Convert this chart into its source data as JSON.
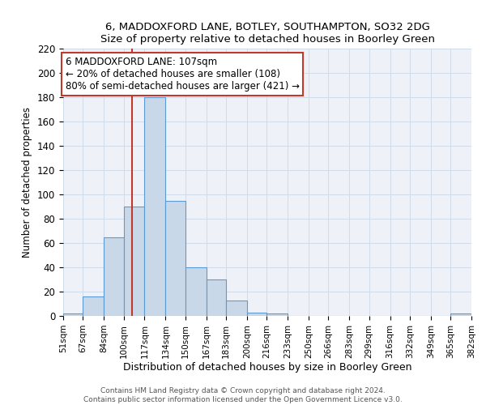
{
  "title1": "6, MADDOXFORD LANE, BOTLEY, SOUTHAMPTON, SO32 2DG",
  "title2": "Size of property relative to detached houses in Boorley Green",
  "xlabel": "Distribution of detached houses by size in Boorley Green",
  "ylabel": "Number of detached properties",
  "bin_edges": [
    51,
    67,
    84,
    100,
    117,
    134,
    150,
    167,
    183,
    200,
    216,
    233,
    250,
    266,
    283,
    299,
    316,
    332,
    349,
    365,
    382
  ],
  "bar_heights": [
    2,
    16,
    65,
    90,
    180,
    95,
    40,
    30,
    13,
    3,
    2,
    0,
    0,
    0,
    0,
    0,
    0,
    0,
    0,
    2
  ],
  "bar_color": "#c8d8e8",
  "bar_edge_color": "#5b9bd5",
  "vline_x": 107,
  "vline_color": "#c0392b",
  "annotation_line1": "6 MADDOXFORD LANE: 107sqm",
  "annotation_line2": "← 20% of detached houses are smaller (108)",
  "annotation_line3": "80% of semi-detached houses are larger (421) →",
  "annotation_box_color": "white",
  "annotation_box_edge": "#c0392b",
  "ylim": [
    0,
    220
  ],
  "yticks": [
    0,
    20,
    40,
    60,
    80,
    100,
    120,
    140,
    160,
    180,
    200,
    220
  ],
  "tick_labels": [
    "51sqm",
    "67sqm",
    "84sqm",
    "100sqm",
    "117sqm",
    "134sqm",
    "150sqm",
    "167sqm",
    "183sqm",
    "200sqm",
    "216sqm",
    "233sqm",
    "250sqm",
    "266sqm",
    "283sqm",
    "299sqm",
    "316sqm",
    "332sqm",
    "349sqm",
    "365sqm",
    "382sqm"
  ],
  "footer1": "Contains HM Land Registry data © Crown copyright and database right 2024.",
  "footer2": "Contains public sector information licensed under the Open Government Licence v3.0.",
  "grid_color": "#d0dcea",
  "background_color": "#eef2f8"
}
